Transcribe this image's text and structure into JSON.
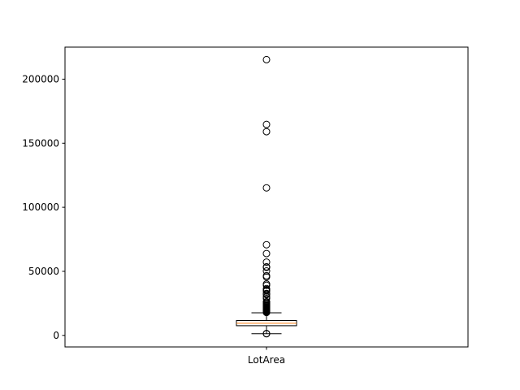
{
  "chart_data": {
    "type": "box",
    "categories": [
      "LotArea"
    ],
    "series": [
      {
        "values": {
          "whisker_low": 1300,
          "q1": 7554,
          "median": 9478,
          "q3": 11602,
          "whisker_high": 17671,
          "outliers": [
            1300,
            1477,
            17920,
            18000,
            18386,
            18450,
            18800,
            19138,
            19296,
            19378,
            19690,
            20000,
            20431,
            20781,
            20896,
            21000,
            21286,
            21384,
            21453,
            21535,
            21695,
            21872,
            21930,
            22420,
            22950,
            23257,
            23595,
            24090,
            25000,
            25095,
            25286,
            25339,
            26142,
            26178,
            28698,
            29959,
            31770,
            32463,
            32668,
            34650,
            35133,
            35760,
            36500,
            39104,
            40094,
            45600,
            46589,
            50271,
            53107,
            53227,
            53504,
            57200,
            63887,
            70761,
            115149,
            159000,
            164660,
            215245
          ]
        }
      }
    ],
    "ylim": [
      -9000,
      225000
    ],
    "yticks": [
      0,
      50000,
      100000,
      150000,
      200000
    ],
    "yticklabels": [
      "0",
      "50000",
      "100000",
      "150000",
      "200000"
    ],
    "title": "",
    "xlabel": "",
    "ylabel": "",
    "grid": false,
    "colors": {
      "box": "#000000",
      "median": "#ff7f0e",
      "outlier": "#000000"
    }
  }
}
